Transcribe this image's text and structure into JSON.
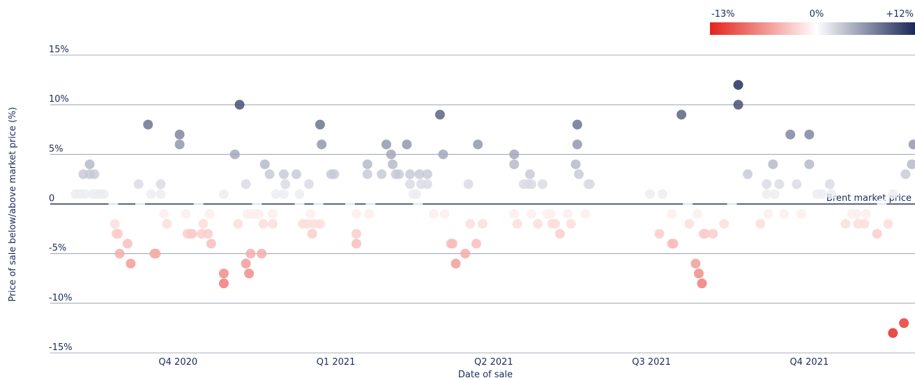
{
  "chart_data": {
    "type": "scatter",
    "y_label": "Price of sale below/above market price (%)",
    "x_label": "Date of sale",
    "annotation": "Brent market price",
    "xlim": [
      -0.81,
      4.67
    ],
    "xticks": [
      {
        "value": 0,
        "label": "Q4 2020"
      },
      {
        "value": 1,
        "label": "Q1 2021"
      },
      {
        "value": 2,
        "label": "Q2 2021"
      },
      {
        "value": 3,
        "label": "Q3 2021"
      },
      {
        "value": 4,
        "label": "Q4 2021"
      }
    ],
    "ylim": [
      -15,
      15
    ],
    "yticks": [
      {
        "value": 15,
        "label": "15%"
      },
      {
        "value": 10,
        "label": "10%"
      },
      {
        "value": 5,
        "label": "5%"
      },
      0,
      {
        "value": -5,
        "label": "-5%"
      },
      {
        "value": -10,
        "label": "-10%"
      },
      {
        "value": -15,
        "label": "-15%"
      }
    ],
    "grid": true,
    "color_scale": {
      "colors": [
        "#e3241b",
        "#ffffff",
        "#1b2856"
      ],
      "ticks": [
        {
          "value": -13,
          "label": "-13%"
        },
        {
          "value": 0,
          "label": "0%"
        },
        {
          "value": 12,
          "label": "+12%"
        }
      ]
    },
    "x": [
      -0.65,
      -0.62,
      -0.6,
      -0.59,
      -0.56,
      -0.56,
      -0.54,
      -0.53,
      -0.51,
      -0.49,
      -0.47,
      -0.41,
      -0.4,
      -0.39,
      -0.38,
      -0.37,
      -0.32,
      -0.3,
      -0.25,
      -0.24,
      -0.19,
      -0.17,
      -0.15,
      -0.14,
      -0.11,
      -0.11,
      -0.09,
      -0.07,
      0.01,
      0.01,
      0.05,
      0.06,
      0.08,
      0.09,
      0.13,
      0.15,
      0.16,
      0.19,
      0.2,
      0.21,
      0.29,
      0.29,
      0.29,
      0.36,
      0.38,
      0.39,
      0.43,
      0.43,
      0.44,
      0.45,
      0.46,
      0.46,
      0.49,
      0.5,
      0.51,
      0.53,
      0.54,
      0.55,
      0.58,
      0.6,
      0.6,
      0.62,
      0.67,
      0.67,
      0.68,
      0.75,
      0.77,
      0.77,
      0.79,
      0.82,
      0.83,
      0.84,
      0.85,
      0.86,
      0.89,
      0.9,
      0.9,
      0.91,
      0.97,
      0.99,
      1.09,
      1.13,
      1.13,
      1.13,
      1.2,
      1.2,
      1.21,
      1.22,
      1.29,
      1.32,
      1.35,
      1.36,
      1.38,
      1.4,
      1.45,
      1.47,
      1.47,
      1.49,
      1.51,
      1.52,
      1.53,
      1.54,
      1.58,
      1.58,
      1.62,
      1.66,
      1.68,
      1.69,
      1.73,
      1.74,
      1.76,
      1.82,
      1.84,
      1.85,
      1.89,
      1.9,
      1.93,
      2.13,
      2.13,
      2.13,
      2.15,
      2.19,
      2.22,
      2.23,
      2.24,
      2.24,
      2.28,
      2.31,
      2.34,
      2.36,
      2.37,
      2.39,
      2.42,
      2.47,
      2.49,
      2.52,
      2.53,
      2.53,
      2.54,
      2.58,
      2.6,
      2.61,
      2.99,
      3.05,
      3.07,
      3.13,
      3.14,
      3.13,
      3.19,
      3.23,
      3.24,
      3.28,
      3.29,
      3.3,
      3.32,
      3.33,
      3.34,
      3.39,
      3.46,
      3.51,
      3.55,
      3.55,
      3.61,
      3.69,
      3.73,
      3.73,
      3.74,
      3.77,
      3.78,
      3.81,
      3.84,
      3.88,
      3.92,
      3.95,
      4.0,
      4.0,
      4.05,
      4.08,
      4.13,
      4.14,
      4.23,
      4.27,
      4.3,
      4.31,
      4.35,
      4.36,
      4.43,
      4.46,
      4.5,
      4.53,
      4.53,
      4.6,
      4.61,
      4.65,
      4.66
    ],
    "values": [
      1,
      1,
      3,
      1,
      4,
      3,
      1,
      3,
      1,
      1,
      1,
      0,
      -2,
      -3,
      -3,
      -5,
      -4,
      -6,
      2,
      0,
      8,
      1,
      -5,
      -5,
      2,
      1,
      -1,
      -2,
      7,
      6,
      -1,
      -3,
      -3,
      -3,
      0,
      -3,
      -2,
      -3,
      -1,
      -4,
      1,
      -7,
      -8,
      5,
      -2,
      10,
      2,
      -6,
      -1,
      -7,
      -5,
      -1,
      -1,
      0,
      -1,
      -5,
      -2,
      4,
      3,
      -1,
      -2,
      1,
      3,
      1,
      2,
      3,
      1,
      0,
      -2,
      -2,
      2,
      -1,
      -3,
      -2,
      0,
      -2,
      8,
      6,
      3,
      3,
      0,
      -1,
      -3,
      -4,
      4,
      3,
      -1,
      0,
      3,
      6,
      5,
      4,
      3,
      3,
      6,
      3,
      2,
      1,
      1,
      0,
      3,
      2,
      3,
      2,
      -1,
      9,
      5,
      -1,
      -4,
      -4,
      -6,
      -5,
      2,
      -2,
      -4,
      6,
      -2,
      5,
      4,
      -1,
      -2,
      2,
      2,
      3,
      2,
      -1,
      -2,
      2,
      -1,
      -1,
      -2,
      -2,
      -3,
      -1,
      -2,
      4,
      8,
      6,
      3,
      -1,
      2,
      2,
      1,
      -3,
      1,
      -4,
      -4,
      -1,
      9,
      0,
      -2,
      -6,
      -1,
      -7,
      -8,
      -3,
      -3,
      -3,
      -2,
      0,
      12,
      10,
      3,
      -2,
      2,
      1,
      -1,
      4,
      1,
      2,
      -1,
      7,
      2,
      -1,
      7,
      4,
      1,
      1,
      2,
      1,
      -2,
      -1,
      -1,
      -2,
      -2,
      -1,
      -3,
      0,
      -2,
      1,
      -13,
      -12,
      3,
      4,
      6
    ]
  }
}
